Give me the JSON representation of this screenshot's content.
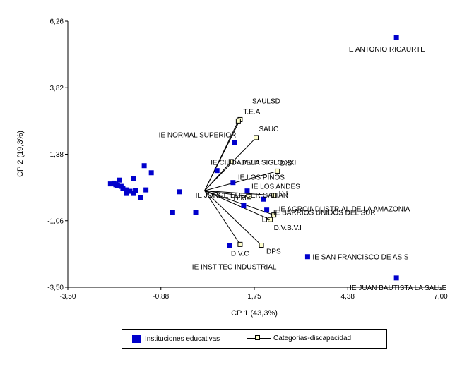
{
  "chart_data": {
    "type": "scatter",
    "xlabel": "CP 1 (43,3%)",
    "ylabel": "CP 2 (19,3%)",
    "xlim": [
      -3.5,
      7.0
    ],
    "ylim": [
      -3.5,
      6.26
    ],
    "xticks": [
      "-3,50",
      "-0,88",
      "1,75",
      "4,38",
      "7,00"
    ],
    "yticks": [
      "6,26",
      "3,82",
      "1,38",
      "-1,06",
      "-3,50"
    ],
    "xtick_values": [
      -3.5,
      -0.88,
      1.75,
      4.38,
      7.0
    ],
    "ytick_values": [
      6.26,
      3.82,
      1.38,
      -1.06,
      -3.5
    ],
    "origin": [
      0.35,
      0.04
    ],
    "series": [
      {
        "name": "Instituciones educativas",
        "color": "#0000cc",
        "marker": "filled-square",
        "points": [
          {
            "x": 5.75,
            "y": 5.67,
            "label": "IE ANTONIO RICAURTE"
          },
          {
            "x": 5.75,
            "y": -3.16,
            "label": "IE JUAN BAUTISTA LA SALLE"
          },
          {
            "x": 3.25,
            "y": -2.38,
            "label": "IE SAN FRANCISCO DE ASIS"
          },
          {
            "x": 1.2,
            "y": 1.82,
            "label": "IE NORMAL SUPERIOR"
          },
          {
            "x": 0.7,
            "y": 0.78,
            "label": "IE CIUDADELA SIGLO XXI"
          },
          {
            "x": 1.15,
            "y": 0.34,
            "label": "IE LOS PINOS"
          },
          {
            "x": 1.55,
            "y": 0.03,
            "label": "IE LOS ANDES"
          },
          {
            "x": 2.0,
            "y": -0.27,
            "label": "IE JORGE ELIECER GAITAN"
          },
          {
            "x": 2.1,
            "y": -0.67,
            "label": "IE AGROINDUSTRIAL DE LA AMAZONIA"
          },
          {
            "x": 1.45,
            "y": -0.51,
            "label": "IE BARRIOS UNIDOS DEL SUR"
          },
          {
            "x": 1.05,
            "y": -1.96,
            "label": "IE INST TEC INDUSTRIAL"
          },
          {
            "x": -1.65,
            "y": 0.48,
            "label": ""
          },
          {
            "x": -1.35,
            "y": 0.96,
            "label": ""
          },
          {
            "x": -1.15,
            "y": 0.7,
            "label": ""
          },
          {
            "x": -2.0,
            "y": 0.2,
            "label": ""
          },
          {
            "x": -2.2,
            "y": 0.32,
            "label": ""
          },
          {
            "x": -2.3,
            "y": 0.29,
            "label": ""
          },
          {
            "x": -2.1,
            "y": 0.24,
            "label": ""
          },
          {
            "x": -1.95,
            "y": 0.13,
            "label": ""
          },
          {
            "x": -2.05,
            "y": 0.43,
            "label": ""
          },
          {
            "x": -2.15,
            "y": 0.26,
            "label": ""
          },
          {
            "x": -1.85,
            "y": 0.07,
            "label": ""
          },
          {
            "x": -1.6,
            "y": 0.04,
            "label": ""
          },
          {
            "x": -1.75,
            "y": 0.02,
            "label": ""
          },
          {
            "x": -1.85,
            "y": -0.06,
            "label": ""
          },
          {
            "x": -1.65,
            "y": -0.06,
            "label": ""
          },
          {
            "x": -1.45,
            "y": -0.2,
            "label": ""
          },
          {
            "x": -1.3,
            "y": 0.07,
            "label": ""
          },
          {
            "x": -0.55,
            "y": -0.76,
            "label": ""
          },
          {
            "x": 0.1,
            "y": -0.75,
            "label": ""
          },
          {
            "x": -0.35,
            "y": 0.0,
            "label": ""
          }
        ]
      },
      {
        "name": "Categorias-discapacidad",
        "color": "#ffffcc",
        "marker": "open-square-with-vector",
        "points": [
          {
            "x": 1.35,
            "y": 2.65,
            "label": "SAULSD"
          },
          {
            "x": 1.3,
            "y": 2.6,
            "label": "T.E.A"
          },
          {
            "x": 1.8,
            "y": 1.99,
            "label": "SAUC"
          },
          {
            "x": 1.1,
            "y": 1.11,
            "label": "T.P.V.H"
          },
          {
            "x": 2.4,
            "y": 0.76,
            "label": "D.S"
          },
          {
            "x": 2.3,
            "y": -0.13,
            "label": "D.I"
          },
          {
            "x": 1.6,
            "y": -0.18,
            "label": "D.M"
          },
          {
            "x": 2.3,
            "y": -0.85,
            "label": "LF"
          },
          {
            "x": 2.2,
            "y": -1.02,
            "label": "D.V.B.V.I"
          },
          {
            "x": 1.35,
            "y": -1.93,
            "label": "D.V.C"
          },
          {
            "x": 1.95,
            "y": -1.96,
            "label": "DPS"
          }
        ]
      }
    ],
    "legend": {
      "position": "bottom",
      "items": [
        "Instituciones educativas",
        "Categorias-discapacidad"
      ]
    }
  }
}
